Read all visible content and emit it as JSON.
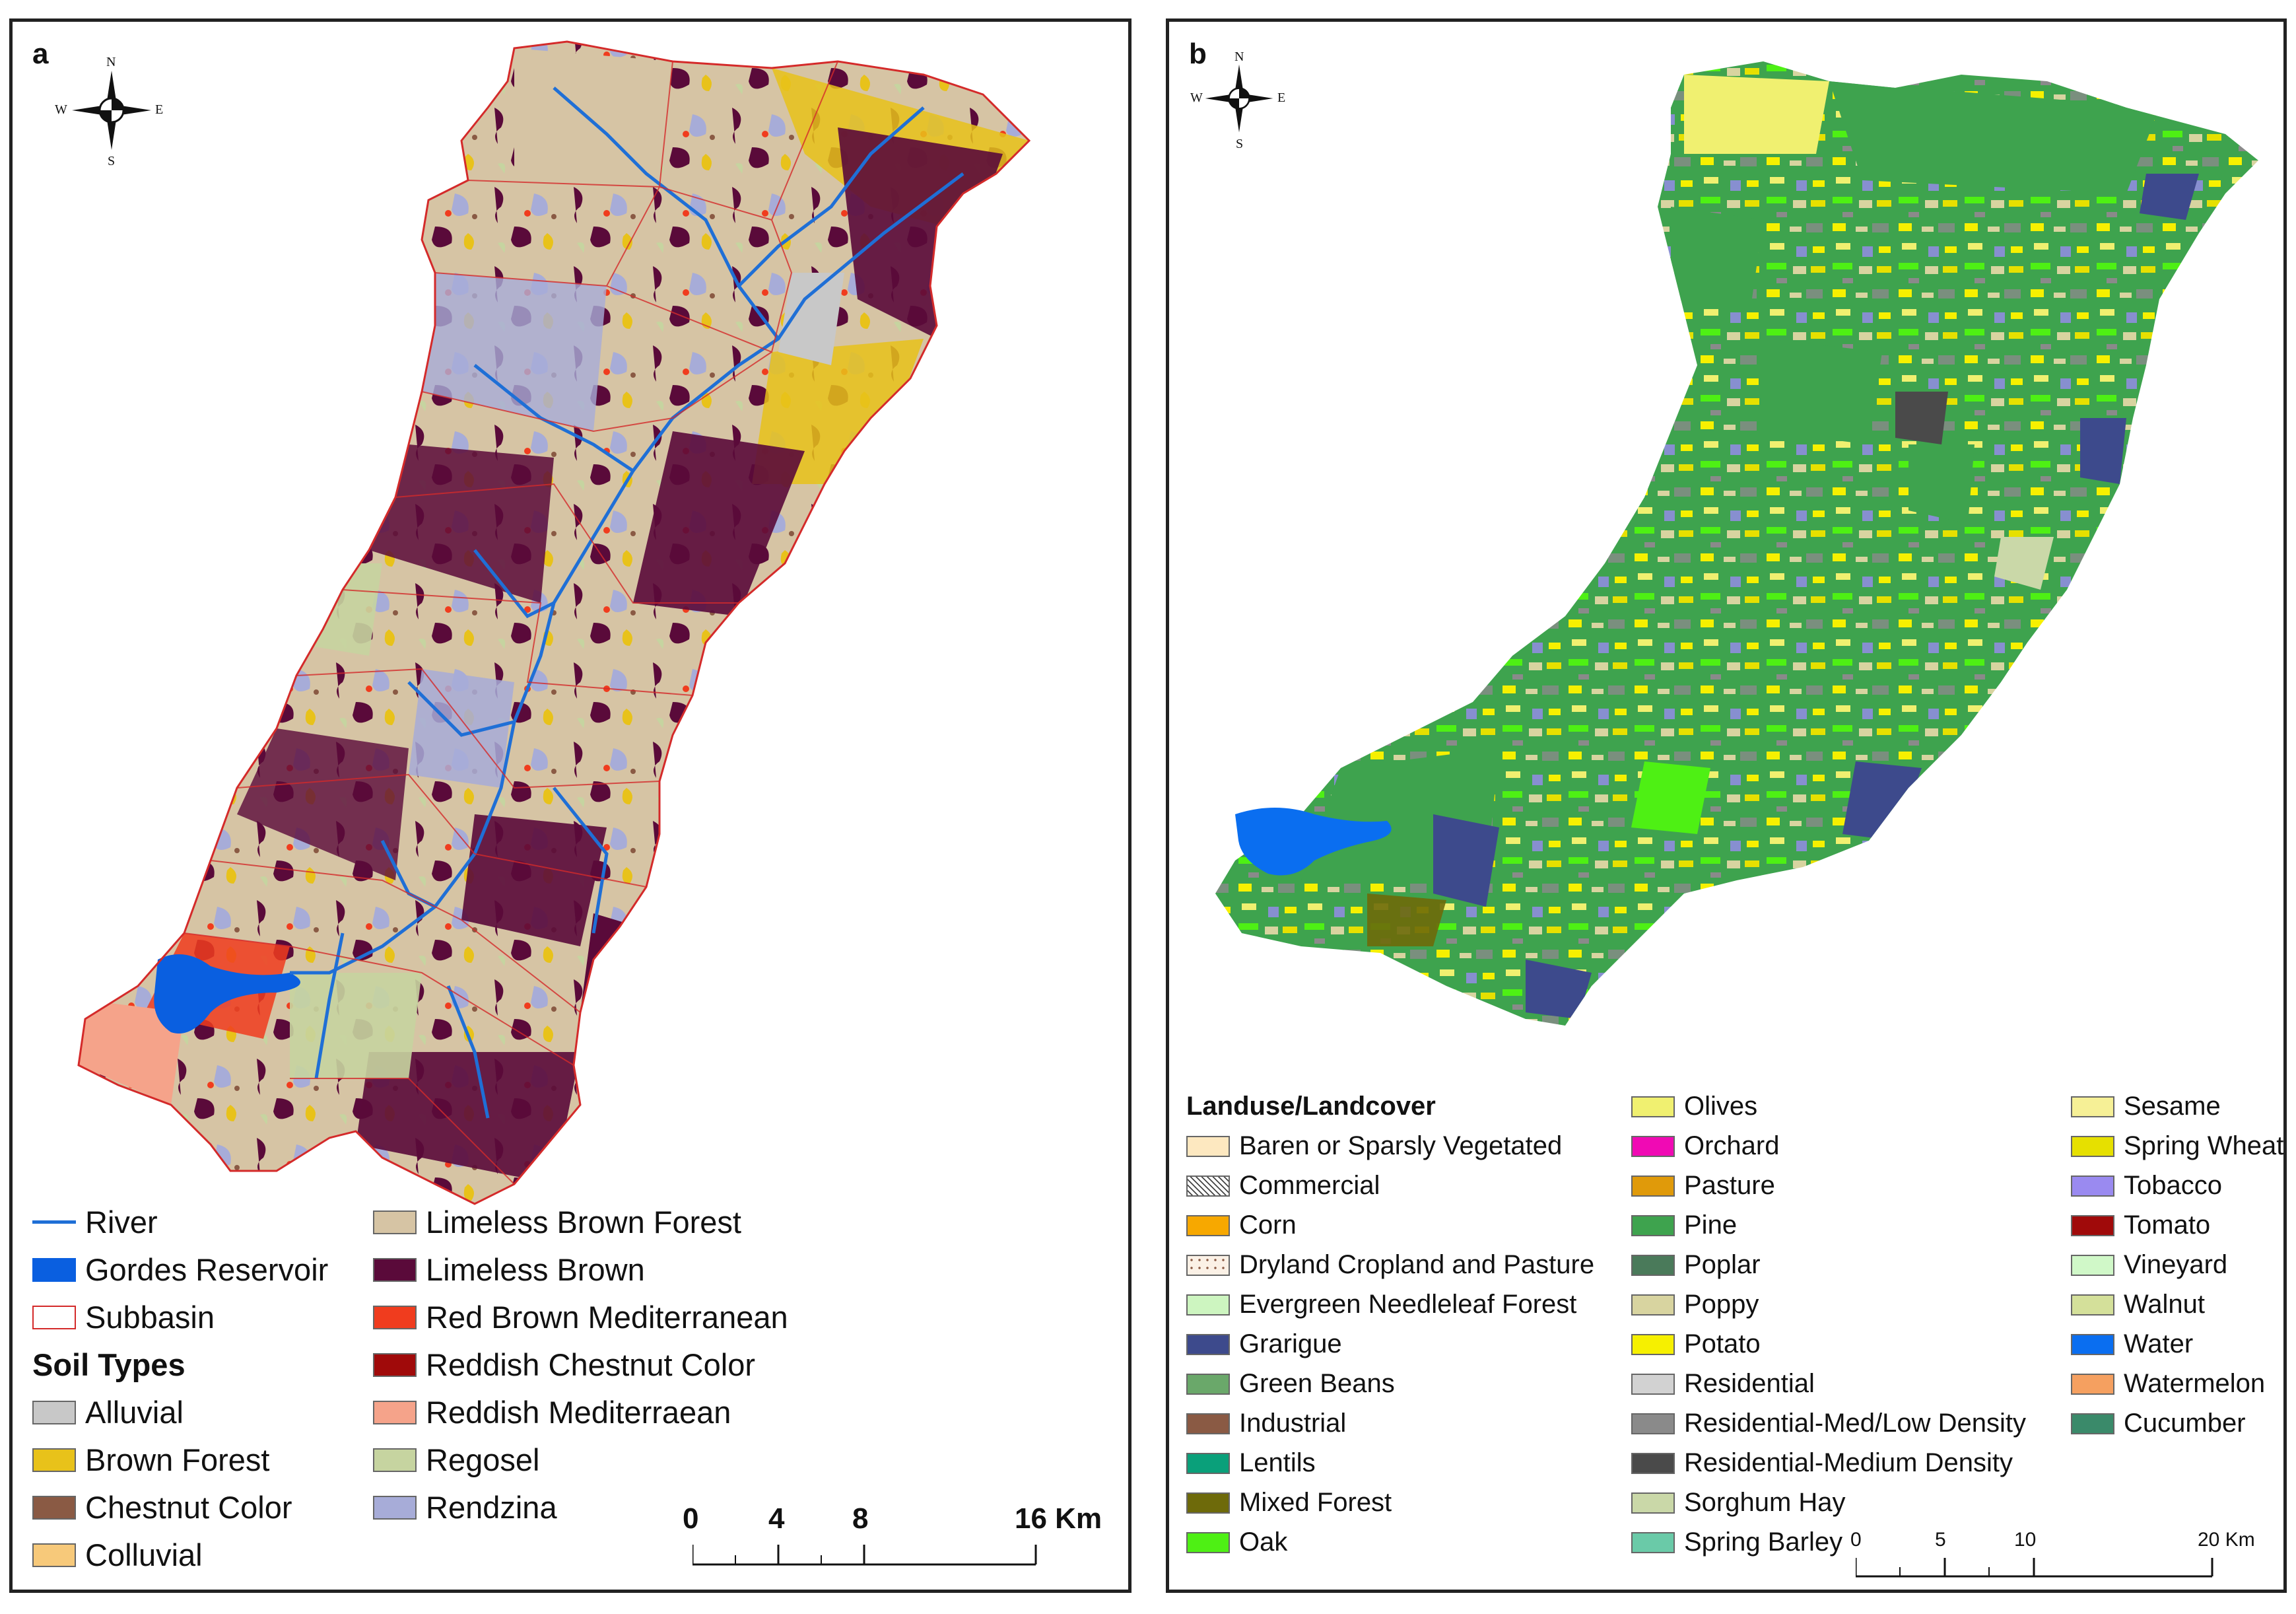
{
  "panel_a": {
    "label": "a",
    "compass": {
      "n": "N",
      "s": "S",
      "e": "E",
      "w": "W"
    },
    "legend_items": [
      {
        "label": "River",
        "kind": "line",
        "color": "#1f6fd6"
      },
      {
        "label": "Gordes Reservoir",
        "kind": "fill",
        "color": "#0a5fe0"
      },
      {
        "label": "Subbasin",
        "kind": "outline",
        "color": "#d42a2a"
      }
    ],
    "soil_title": "Soil Types",
    "soil_items_col1": [
      {
        "label": " Alluvial",
        "color": "#c8c8c8"
      },
      {
        "label": "Brown Forest",
        "color": "#e8c21a"
      },
      {
        "label": "Chestnut Color",
        "color": "#8a5a44"
      },
      {
        "label": "Colluvial",
        "color": "#f7c97a"
      }
    ],
    "soil_items_col2": [
      {
        "label": "Limeless Brown Forest",
        "color": "#d6c4a4"
      },
      {
        "label": "Limeless Brown",
        "color": "#5a0a3a"
      },
      {
        "label": "Red Brown Mediterranean",
        "color": "#f03c1e"
      },
      {
        "label": "Reddish Chestnut Color",
        "color": "#a00a0a"
      },
      {
        "label": "Reddish Mediterraean",
        "color": "#f5a38a"
      },
      {
        "label": "Regosel",
        "color": "#c6d4a0"
      },
      {
        "label": "Rendzina",
        "color": "#a7acd8"
      }
    ],
    "scale": {
      "ticks": [
        "0",
        "4",
        "8",
        "16 Km"
      ]
    }
  },
  "panel_b": {
    "label": "b",
    "compass": {
      "n": "N",
      "s": "S",
      "e": "E",
      "w": "W"
    },
    "legend_title": "Landuse/Landcover",
    "col1": [
      {
        "label": "Baren or Sparsly Vegetated",
        "color": "#fde8c0"
      },
      {
        "label": "Commercial",
        "color": "#ffffff",
        "pattern": "cross"
      },
      {
        "label": "Corn",
        "color": "#f7a800"
      },
      {
        "label": "Dryland Cropland and Pasture",
        "color": "#fbf1e6",
        "pattern": "dots"
      },
      {
        "label": "Evergreen Needleleaf Forest",
        "color": "#cdf5c0"
      },
      {
        "label": "Grarigue",
        "color": "#3d4a8c"
      },
      {
        "label": "Green Beans",
        "color": "#6aa86a"
      },
      {
        "label": "Industrial",
        "color": "#8a5a44"
      },
      {
        "label": "Lentils",
        "color": "#0aa07a"
      },
      {
        "label": "Mixed Forest",
        "color": "#6e6a0a"
      },
      {
        "label": "Oak",
        "color": "#4ef014"
      }
    ],
    "col2": [
      {
        "label": "Olives",
        "color": "#f0f070"
      },
      {
        "label": "Orchard",
        "color": "#f00ab4"
      },
      {
        "label": "Pasture",
        "color": "#e09a0a"
      },
      {
        "label": "Pine",
        "color": "#3ea34e"
      },
      {
        "label": "Poplar",
        "color": "#4a7a5a"
      },
      {
        "label": "Poppy",
        "color": "#d8d4a0"
      },
      {
        "label": "Potato",
        "color": "#f6f000"
      },
      {
        "label": "Residential",
        "color": "#d2d2d2"
      },
      {
        "label": "Residential-Med/Low Density",
        "color": "#8a8a8a"
      },
      {
        "label": "Residential-Medium Density",
        "color": "#4a4a4a"
      },
      {
        "label": "Sorghum Hay",
        "color": "#cad8a8"
      },
      {
        "label": "Spring Barley",
        "color": "#6acaa8"
      }
    ],
    "col3": [
      {
        "label": "Sesame",
        "color": "#f6f096"
      },
      {
        "label": "Spring Wheat",
        "color": "#e6e000"
      },
      {
        "label": "Tobacco",
        "color": "#9a8af0"
      },
      {
        "label": "Tomato",
        "color": "#a00a0a"
      },
      {
        "label": "Vineyard",
        "color": "#d0f8c8"
      },
      {
        "label": "Walnut",
        "color": "#d4e09a"
      },
      {
        "label": "Water",
        "color": "#0a6ef0"
      },
      {
        "label": "Watermelon",
        "color": "#f5a060"
      },
      {
        "label": "Cucumber",
        "color": "#3a8a6a"
      }
    ],
    "scale": {
      "ticks": [
        "0",
        "5",
        "10",
        "20 Km"
      ]
    }
  }
}
